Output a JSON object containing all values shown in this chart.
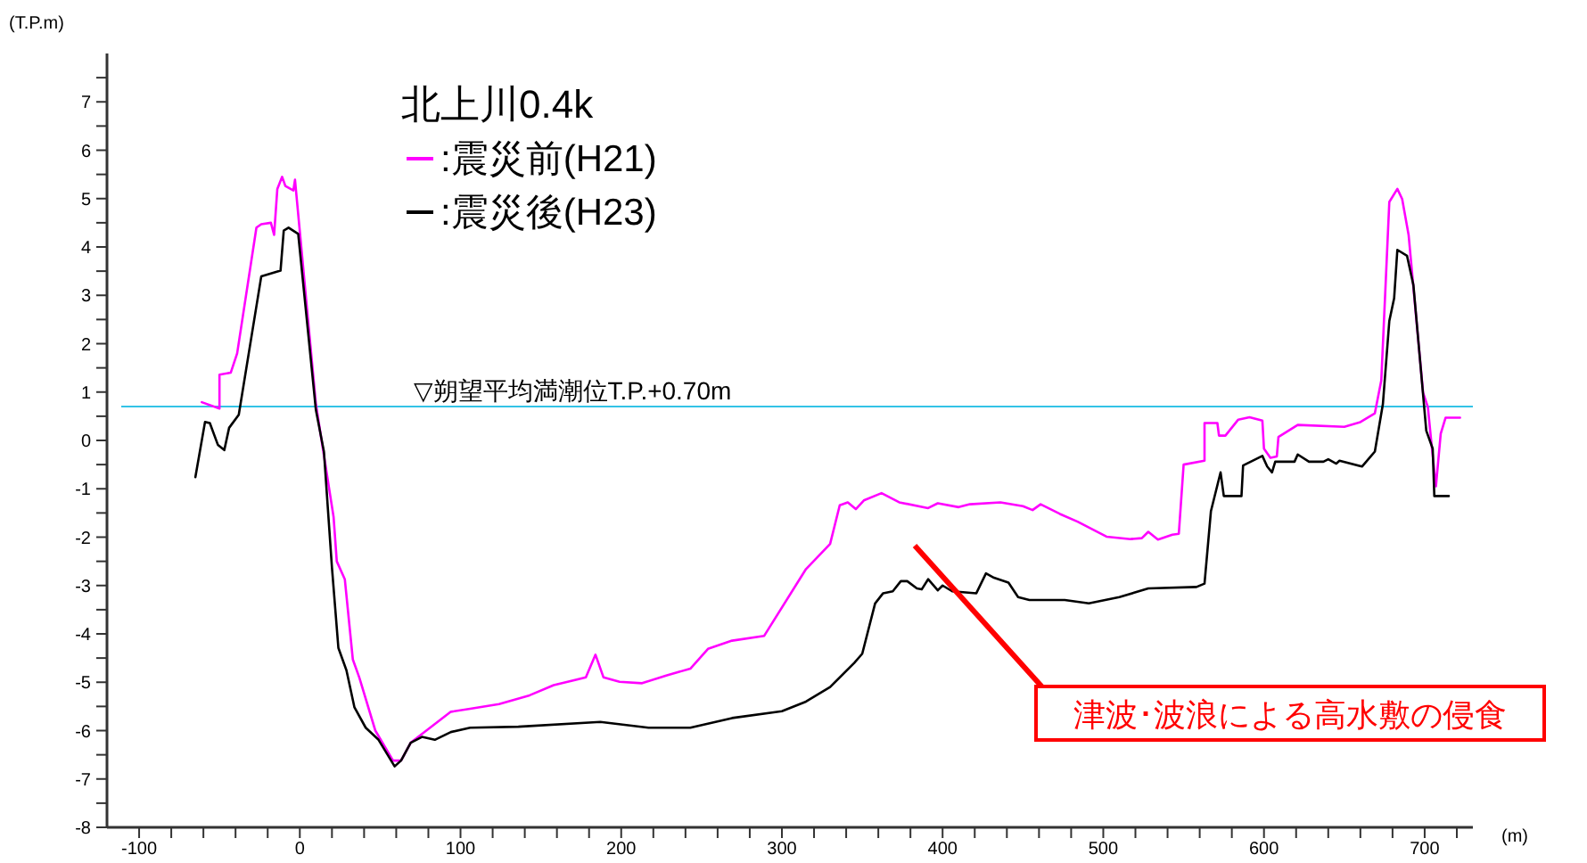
{
  "chart_data": {
    "type": "line",
    "title": "北上川0.4k",
    "xlabel": "(m)",
    "ylabel": "(T.P.m)",
    "xlim": [
      -120,
      730
    ],
    "ylim": [
      -8,
      8
    ],
    "xticks": [
      {
        "value": -100,
        "label": "-100"
      },
      {
        "value": -80,
        "label": null
      },
      {
        "value": -60,
        "label": null
      },
      {
        "value": -40,
        "label": null
      },
      {
        "value": -20,
        "label": null
      },
      0,
      {
        "value": 20,
        "label": null
      },
      {
        "value": 40,
        "label": null
      },
      {
        "value": 60,
        "label": null
      },
      {
        "value": 80,
        "label": null
      },
      100,
      {
        "value": 120,
        "label": null
      },
      {
        "value": 140,
        "label": null
      },
      {
        "value": 160,
        "label": null
      },
      {
        "value": 180,
        "label": null
      },
      200,
      {
        "value": 220,
        "label": null
      },
      {
        "value": 240,
        "label": null
      },
      {
        "value": 260,
        "label": null
      },
      {
        "value": 280,
        "label": null
      },
      300,
      {
        "value": 320,
        "label": null
      },
      {
        "value": 340,
        "label": null
      },
      {
        "value": 360,
        "label": null
      },
      {
        "value": 380,
        "label": null
      },
      400,
      {
        "value": 420,
        "label": null
      },
      {
        "value": 440,
        "label": null
      },
      {
        "value": 460,
        "label": null
      },
      {
        "value": 480,
        "label": null
      },
      500,
      {
        "value": 520,
        "label": null
      },
      {
        "value": 540,
        "label": null
      },
      {
        "value": 560,
        "label": null
      },
      {
        "value": 580,
        "label": null
      },
      600,
      {
        "value": 620,
        "label": null
      },
      {
        "value": 640,
        "label": null
      },
      {
        "value": 660,
        "label": null
      },
      {
        "value": 680,
        "label": null
      },
      700,
      {
        "value": 720,
        "label": null
      }
    ],
    "yticks": [
      {
        "value": -8,
        "label": "-8"
      },
      {
        "value": -7.5,
        "label": null
      },
      {
        "value": -7,
        "label": "-7"
      },
      {
        "value": -6.5,
        "label": null
      },
      {
        "value": -6,
        "label": "-6"
      },
      {
        "value": -5.5,
        "label": null
      },
      {
        "value": -5,
        "label": "-5"
      },
      {
        "value": -4.5,
        "label": null
      },
      {
        "value": -4,
        "label": "-4"
      },
      {
        "value": -3.5,
        "label": null
      },
      {
        "value": -3,
        "label": "-3"
      },
      {
        "value": -2.5,
        "label": null
      },
      {
        "value": -2,
        "label": "-2"
      },
      {
        "value": -1.5,
        "label": null
      },
      {
        "value": -1,
        "label": "-1"
      },
      {
        "value": -0.5,
        "label": null
      },
      0,
      {
        "value": 0.5,
        "label": null
      },
      1,
      {
        "value": 1.5,
        "label": null
      },
      2,
      {
        "value": 2.5,
        "label": null
      },
      3,
      {
        "value": 3.5,
        "label": null
      },
      4,
      {
        "value": 4.5,
        "label": null
      },
      5,
      {
        "value": 5.5,
        "label": null
      },
      6,
      {
        "value": 6.5,
        "label": null
      },
      7,
      {
        "value": 7.5,
        "label": null
      }
    ],
    "grid": false,
    "legend": "top left",
    "line_style": "solid",
    "marker": "none",
    "ref_lines": [
      {
        "axis": "y",
        "value": 0.7,
        "label": "▽朔望平均満潮位T.P.+0.70m",
        "color": "#33c3e6"
      }
    ],
    "annotations": [
      "津波･波浪による高水敷の侵食"
    ],
    "series": [
      {
        "name": ":震災前(H21)",
        "color": "#ff00ff",
        "x": [
          -61,
          -50,
          -50,
          -43,
          -39,
          -27,
          -24,
          -18,
          -16,
          -14,
          -11,
          -9,
          -4,
          -3,
          10,
          21,
          23,
          28,
          33,
          37,
          47,
          58,
          63,
          69,
          94,
          106,
          124,
          143,
          158,
          178,
          184,
          189,
          199,
          213,
          228,
          243,
          254,
          269,
          289,
          315,
          330,
          336,
          341,
          346,
          351,
          362,
          373,
          391,
          397,
          410,
          417,
          436,
          450,
          456,
          461,
          473,
          484,
          502,
          517,
          524,
          528,
          534,
          543,
          547,
          550,
          563,
          563,
          571,
          572,
          576,
          584,
          591,
          599,
          600,
          604,
          608,
          609,
          621,
          650,
          660,
          669,
          673,
          678,
          683,
          686,
          690,
          699,
          702,
          704,
          707,
          710,
          713,
          722
        ],
        "values": [
          0.79,
          0.66,
          1.36,
          1.4,
          1.8,
          4.4,
          4.47,
          4.5,
          4.25,
          5.2,
          5.45,
          5.26,
          5.17,
          5.39,
          0.75,
          -1.58,
          -2.5,
          -2.87,
          -4.53,
          -4.9,
          -6.0,
          -6.62,
          -6.62,
          -6.25,
          -5.61,
          -5.55,
          -5.45,
          -5.27,
          -5.06,
          -4.9,
          -4.43,
          -4.9,
          -4.99,
          -5.02,
          -4.86,
          -4.72,
          -4.31,
          -4.14,
          -4.04,
          -2.66,
          -2.14,
          -1.34,
          -1.28,
          -1.42,
          -1.24,
          -1.09,
          -1.28,
          -1.4,
          -1.3,
          -1.38,
          -1.32,
          -1.28,
          -1.36,
          -1.44,
          -1.32,
          -1.52,
          -1.68,
          -1.99,
          -2.04,
          -2.02,
          -1.89,
          -2.05,
          -1.95,
          -1.93,
          -0.5,
          -0.42,
          0.36,
          0.36,
          0.1,
          0.1,
          0.43,
          0.48,
          0.41,
          -0.17,
          -0.36,
          -0.33,
          0.07,
          0.32,
          0.28,
          0.38,
          0.56,
          1.24,
          4.93,
          5.2,
          4.99,
          4.25,
          0.99,
          0.69,
          0.01,
          -0.95,
          0.14,
          0.47,
          0.47
        ]
      },
      {
        "name": ":震災後(H23)",
        "color": "#000000",
        "x": [
          -65,
          -59,
          -56,
          -51,
          -47,
          -44,
          -38,
          -24,
          -12,
          -10,
          -7,
          -1,
          10,
          15,
          20,
          24,
          29,
          34,
          41,
          49,
          59,
          63,
          69,
          76,
          84,
          94,
          106,
          136,
          187,
          217,
          243,
          269,
          300,
          315,
          330,
          345,
          350,
          358,
          363,
          369,
          374,
          378,
          384,
          387,
          391,
          397,
          400,
          406,
          421,
          427,
          432,
          441,
          447,
          454,
          476,
          491,
          510,
          528,
          558,
          563,
          567,
          573,
          575,
          586,
          587,
          599,
          602,
          605,
          607,
          619,
          621,
          628,
          637,
          640,
          645,
          647,
          661,
          669,
          674,
          678,
          681,
          683,
          689,
          693,
          701,
          705,
          706,
          715
        ],
        "values": [
          -0.76,
          0.38,
          0.36,
          -0.09,
          -0.2,
          0.26,
          0.53,
          3.39,
          3.51,
          4.34,
          4.4,
          4.27,
          0.63,
          -0.23,
          -2.63,
          -4.29,
          -4.75,
          -5.52,
          -5.94,
          -6.19,
          -6.74,
          -6.62,
          -6.25,
          -6.13,
          -6.19,
          -6.03,
          -5.94,
          -5.92,
          -5.82,
          -5.94,
          -5.94,
          -5.74,
          -5.6,
          -5.4,
          -5.1,
          -4.6,
          -4.41,
          -3.37,
          -3.16,
          -3.12,
          -2.91,
          -2.91,
          -3.06,
          -3.08,
          -2.87,
          -3.1,
          -3.0,
          -3.12,
          -3.16,
          -2.75,
          -2.84,
          -2.94,
          -3.24,
          -3.3,
          -3.3,
          -3.37,
          -3.24,
          -3.06,
          -3.03,
          -2.96,
          -1.46,
          -0.66,
          -1.15,
          -1.15,
          -0.52,
          -0.32,
          -0.54,
          -0.66,
          -0.44,
          -0.44,
          -0.29,
          -0.44,
          -0.44,
          -0.39,
          -0.48,
          -0.42,
          -0.54,
          -0.23,
          0.75,
          2.47,
          2.94,
          3.94,
          3.82,
          3.21,
          0.2,
          -0.17,
          -1.15,
          -1.15
        ]
      }
    ]
  }
}
